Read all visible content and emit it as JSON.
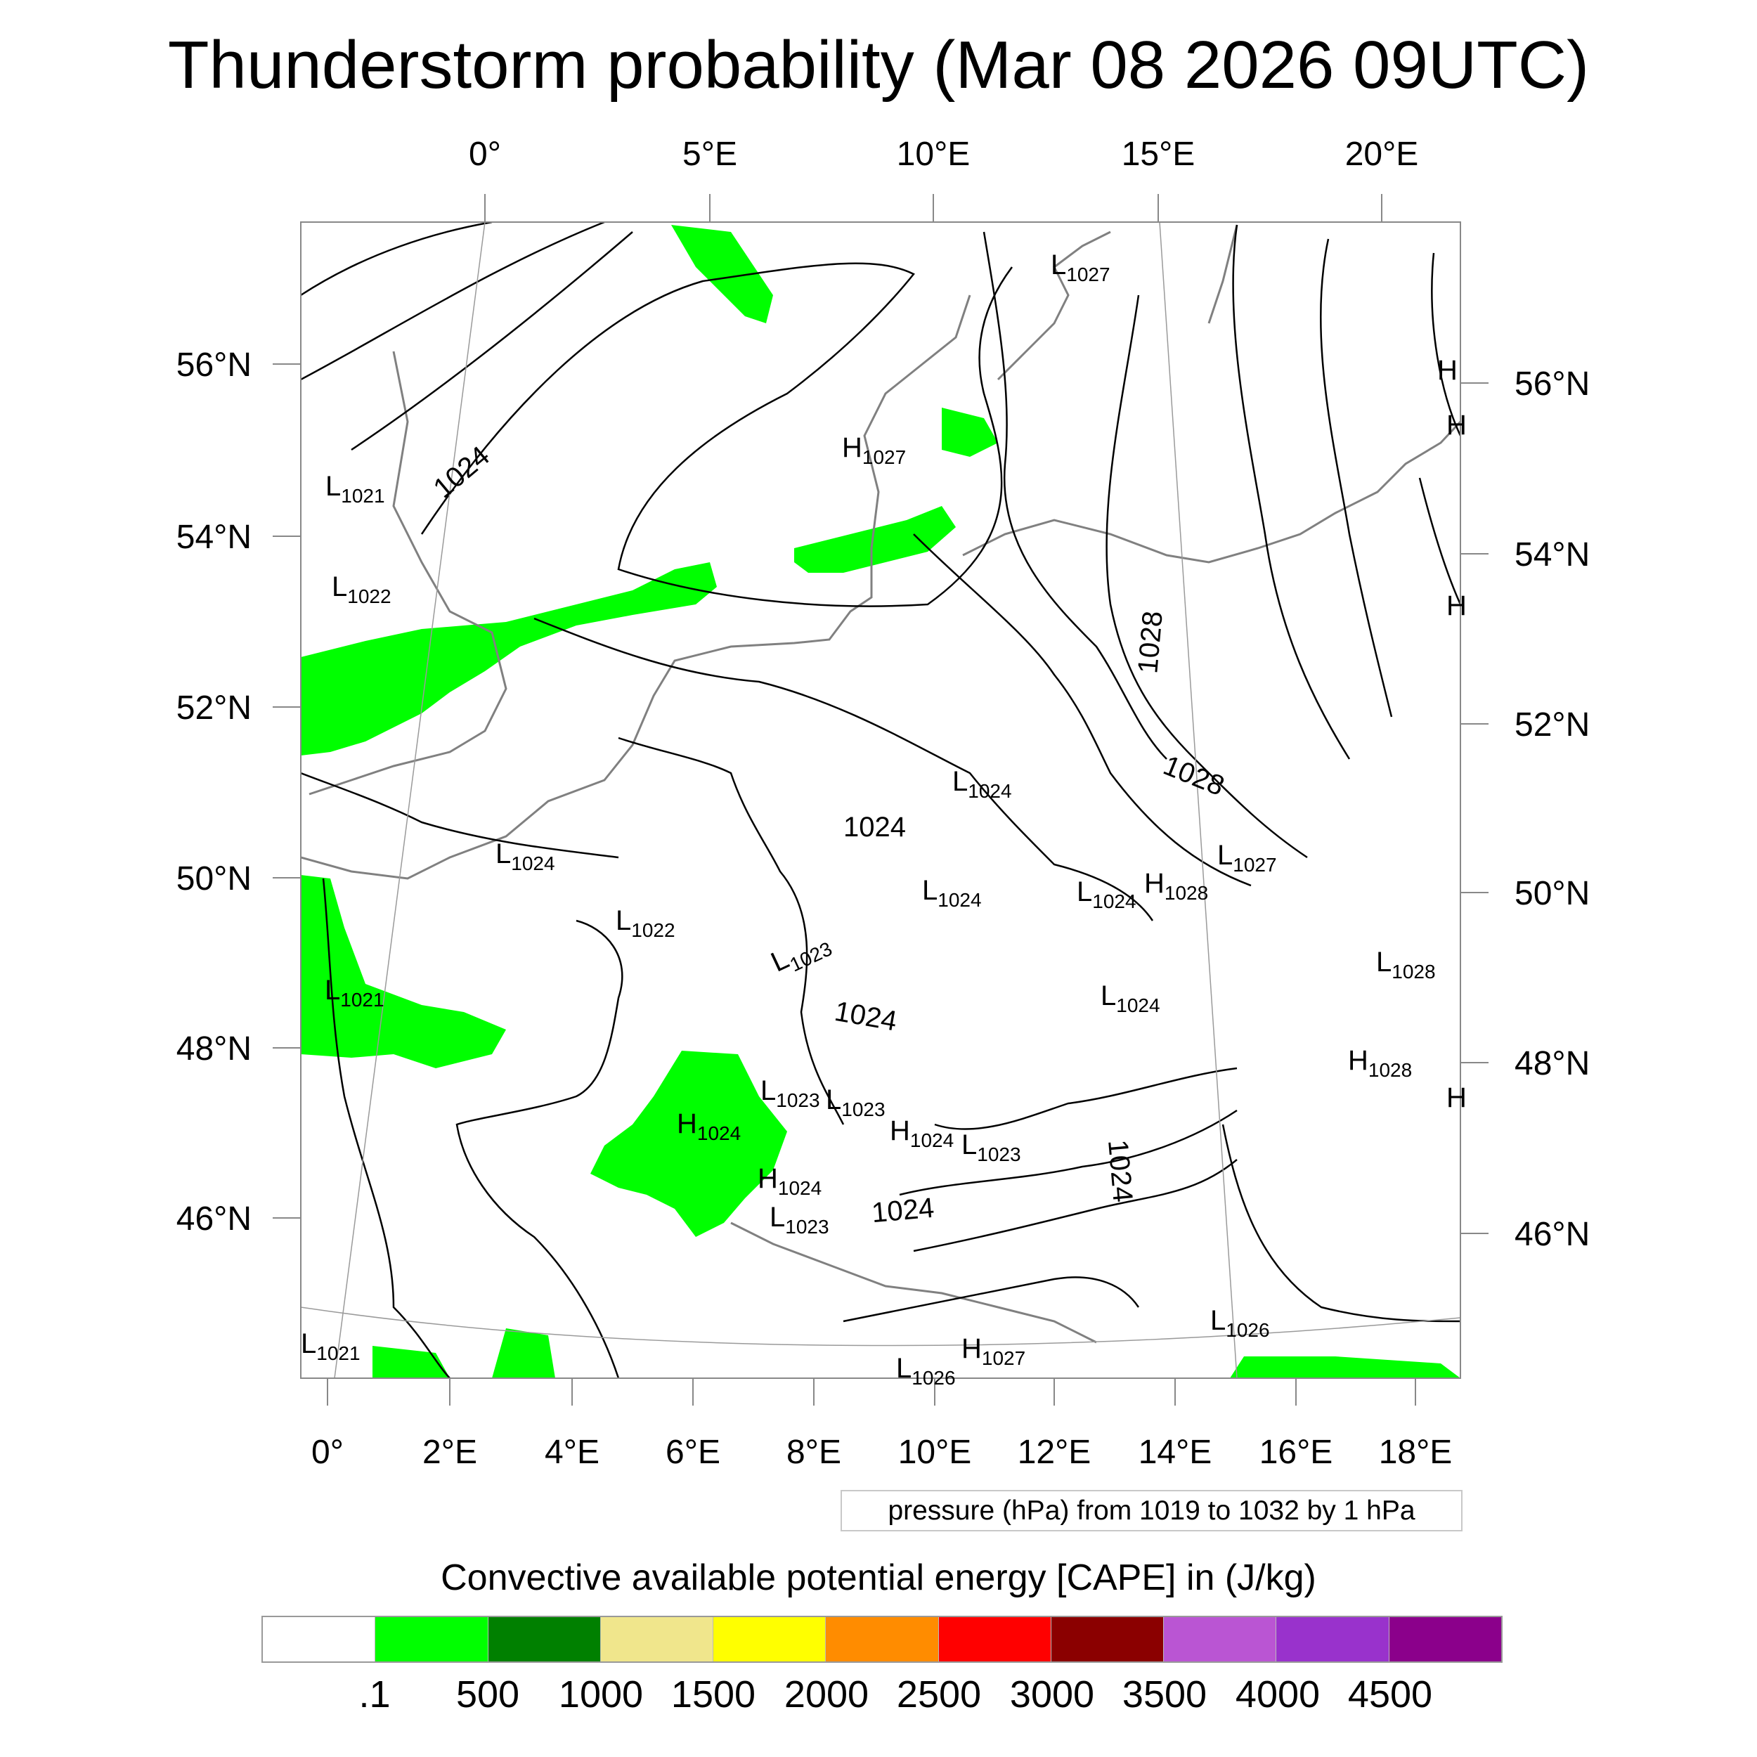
{
  "title": "Thunderstorm probability (Mar 08 2026 09UTC)",
  "top_lon_labels": [
    "0°",
    "5°E",
    "10°E",
    "15°E",
    "20°E"
  ],
  "bottom_lon_labels": [
    "0°",
    "2°E",
    "4°E",
    "6°E",
    "8°E",
    "10°E",
    "12°E",
    "14°E",
    "16°E",
    "18°E"
  ],
  "left_lat_labels": [
    "56°N",
    "54°N",
    "52°N",
    "50°N",
    "48°N",
    "46°N"
  ],
  "right_lat_labels": [
    "56°N",
    "54°N",
    "52°N",
    "50°N",
    "48°N",
    "46°N"
  ],
  "pressure_labels": [
    "L1027",
    "H1027",
    "L1021",
    "L1022",
    "1024",
    "H",
    "H",
    "H",
    "H",
    "1028",
    "1028",
    "L1024",
    "L1024",
    "L1022",
    "L1023",
    "1024",
    "L1024",
    "L1024",
    "H1028",
    "L1027",
    "L1028",
    "L1021",
    "1024",
    "L1024",
    "H1028",
    "L1023",
    "L1023",
    "H1024",
    "H1024",
    "L1023",
    "1024",
    "H1024",
    "L1023",
    "1024",
    "L1021",
    "L1026",
    "H1027",
    "L1026"
  ],
  "legend_note": "pressure (hPa) from 1019 to 1032 by 1 hPa",
  "colorbar": {
    "title": "Convective available potential energy [CAPE] in (J/kg)",
    "colors": [
      "#ffffff",
      "#00ff00",
      "#008000",
      "#f0e68c",
      "#ffff00",
      "#ff8c00",
      "#ff0000",
      "#8b0000",
      "#ba55d3",
      "#9932cc",
      "#8b008b"
    ],
    "labels": [
      ".1",
      "500",
      "1000",
      "1500",
      "2000",
      "2500",
      "3000",
      "3500",
      "4000",
      "4500"
    ]
  },
  "colors": {
    "cape_low": "#00ff00",
    "coast": "#808080",
    "isobar": "#000000"
  }
}
